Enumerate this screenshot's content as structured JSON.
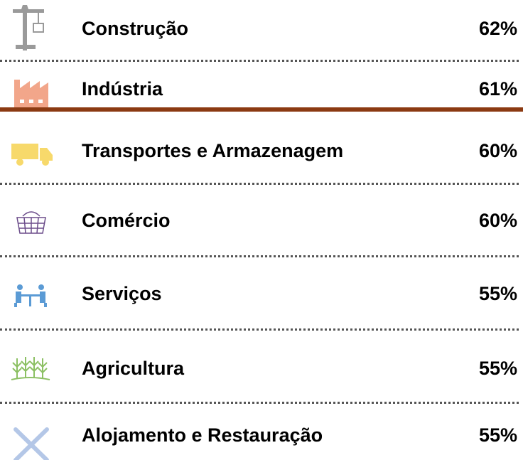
{
  "rows": [
    {
      "label": "Construção",
      "value": "62%"
    },
    {
      "label": "Indústria",
      "value": "61%"
    },
    {
      "label": "Transportes e Armazenagem",
      "value": "60%"
    },
    {
      "label": "Comércio",
      "value": "60%"
    },
    {
      "label": "Serviços",
      "value": "55%"
    },
    {
      "label": "Agricultura",
      "value": "55%"
    },
    {
      "label": "Alojamento e Restauração",
      "value": "55%"
    }
  ]
}
